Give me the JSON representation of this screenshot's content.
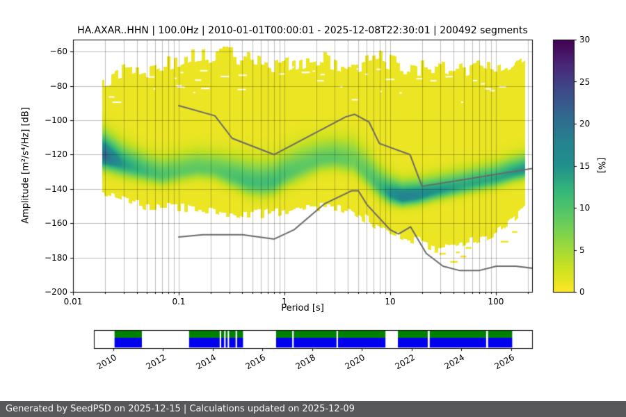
{
  "footer": {
    "text": "Generated by SeedPSD on 2025-12-15 | Calculations updated on 2025-12-09",
    "bg": "#58585a",
    "fg": "#f5f5f5"
  },
  "chart_data": [
    {
      "type": "heatmap",
      "title": "HA.AXAR..HHN | 100.0Hz | 2010-01-01T00:00:01 - 2025-12-08T22:30:01 | 200492 segments",
      "xlabel": "Period [s]",
      "ylabel": "Amplitude [m²/s⁴/Hz] [dB]",
      "x_scale": "log",
      "xlim": [
        0.01,
        220
      ],
      "ylim": [
        -200,
        -53
      ],
      "grid": true,
      "x_ticks": {
        "values": [
          0.01,
          0.1,
          1,
          10,
          100
        ],
        "labels": [
          "0.01",
          "0.1",
          "1",
          "10",
          "100"
        ]
      },
      "y_ticks": {
        "values": [
          -60,
          -80,
          -100,
          -120,
          -140,
          -160,
          -180,
          -200
        ],
        "labels": [
          "−60",
          "−80",
          "−100",
          "−120",
          "−140",
          "−160",
          "−180",
          "−200"
        ]
      },
      "colorbar": {
        "label": "[%]",
        "min": 0,
        "max": 30,
        "ticks": [
          0,
          5,
          10,
          15,
          20,
          25,
          30
        ],
        "colormap": "viridis_r",
        "stops": [
          "#440154",
          "#482878",
          "#3e4a89",
          "#31688e",
          "#26828e",
          "#21918c",
          "#35b779",
          "#5ec962",
          "#90d743",
          "#c9e120",
          "#fde725"
        ]
      },
      "ppsd": {
        "period_range": [
          0.019,
          190
        ],
        "base_percent": 1.0,
        "periods": [
          0.02,
          0.03,
          0.05,
          0.07,
          0.1,
          0.15,
          0.22,
          0.3,
          0.45,
          0.6,
          0.8,
          1.0,
          1.5,
          2.2,
          3.0,
          4.5,
          6.0,
          8.0,
          10,
          13,
          18,
          25,
          35,
          50,
          70,
          100,
          140,
          190
        ],
        "mode_db": [
          -121,
          -126,
          -130,
          -132,
          -130,
          -128,
          -129,
          -132,
          -136,
          -137,
          -136,
          -132,
          -127,
          -123,
          -122,
          -124,
          -131,
          -139,
          -143,
          -145,
          -144,
          -142,
          -140,
          -138,
          -136,
          -134,
          -131,
          -129
        ],
        "sigma_db": [
          5,
          4.5,
          4,
          4,
          4,
          4,
          4,
          4.5,
          5,
          5,
          5,
          5,
          5,
          4.5,
          4.5,
          5,
          5,
          4.5,
          4,
          3.5,
          3.5,
          3.5,
          3.5,
          3.5,
          3.5,
          3.5,
          3.5,
          3.5
        ],
        "peak_percent": [
          20,
          13,
          10,
          9,
          8,
          8,
          8,
          9,
          10,
          10,
          10,
          9,
          8,
          8,
          8,
          7,
          8,
          10,
          14,
          17,
          16,
          14,
          13,
          12,
          12,
          12,
          13,
          14
        ],
        "upper_db": [
          -76,
          -72,
          -70,
          -67,
          -65,
          -63,
          -61,
          -62,
          -64,
          -66,
          -68,
          -67,
          -65,
          -64,
          -66,
          -68,
          -66,
          -64,
          -66,
          -68,
          -70,
          -70,
          -71,
          -70,
          -68,
          -70,
          -66,
          -60
        ],
        "lower_db": [
          -143,
          -147,
          -150,
          -151,
          -151,
          -152,
          -153,
          -154,
          -155,
          -155,
          -154,
          -153,
          -151,
          -150,
          -150,
          -153,
          -158,
          -163,
          -166,
          -168,
          -170,
          -173,
          -174,
          -172,
          -169,
          -165,
          -158,
          -150
        ]
      },
      "noise_models": {
        "color": "#696969",
        "nhnm": {
          "periods": [
            0.1,
            0.22,
            0.32,
            0.8,
            3.8,
            4.6,
            6.3,
            7.9,
            15.4,
            20.0,
            354.8
          ],
          "db": [
            -91.5,
            -97.4,
            -110.5,
            -120.0,
            -98.0,
            -96.5,
            -101.0,
            -113.5,
            -120.0,
            -138.5,
            -126.0
          ]
        },
        "nlnm": {
          "periods": [
            0.1,
            0.17,
            0.4,
            0.8,
            1.24,
            2.4,
            4.3,
            5.0,
            6.0,
            10.0,
            12.0,
            15.6,
            21.9,
            31.6,
            45.0,
            70.0,
            101.0,
            154.0,
            328.0
          ],
          "db": [
            -168.0,
            -166.7,
            -166.7,
            -169.2,
            -163.7,
            -148.6,
            -141.1,
            -141.1,
            -149.0,
            -163.8,
            -166.2,
            -162.1,
            -177.5,
            -185.0,
            -187.5,
            -187.5,
            -185.0,
            -185.0,
            -187.5
          ]
        }
      }
    },
    {
      "type": "availability-timeline",
      "x_range": [
        2009.22,
        2026.85
      ],
      "ticks": [
        2010,
        2012,
        2014,
        2016,
        2018,
        2020,
        2022,
        2024,
        2026
      ],
      "tick_labels": [
        "2010",
        "2012",
        "2014",
        "2016",
        "2018",
        "2020",
        "2022",
        "2024",
        "2026"
      ],
      "green_color": "#008000",
      "blue_color": "#0000ee",
      "green_segments": [
        [
          2010.05,
          2011.15
        ],
        [
          2013.05,
          2014.28
        ],
        [
          2014.34,
          2014.46
        ],
        [
          2014.52,
          2014.6
        ],
        [
          2014.66,
          2014.92
        ],
        [
          2014.98,
          2015.22
        ],
        [
          2016.55,
          2017.2
        ],
        [
          2017.26,
          2018.98
        ],
        [
          2019.04,
          2020.95
        ],
        [
          2021.45,
          2022.65
        ],
        [
          2022.73,
          2025.0
        ],
        [
          2025.08,
          2026.05
        ]
      ],
      "blue_segments": [
        [
          2010.05,
          2011.15
        ],
        [
          2013.05,
          2014.28
        ],
        [
          2014.34,
          2014.46
        ],
        [
          2014.52,
          2014.6
        ],
        [
          2014.66,
          2014.92
        ],
        [
          2014.98,
          2015.22
        ],
        [
          2016.55,
          2017.2
        ],
        [
          2017.26,
          2018.98
        ],
        [
          2019.04,
          2020.95
        ],
        [
          2021.45,
          2022.65
        ],
        [
          2022.73,
          2025.0
        ],
        [
          2025.08,
          2026.05
        ]
      ]
    }
  ]
}
